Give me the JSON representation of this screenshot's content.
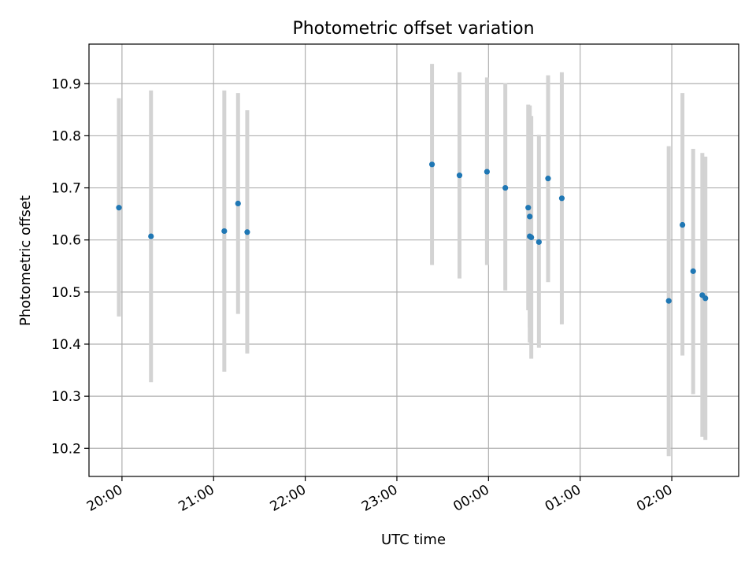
{
  "chart_data": {
    "type": "scatter",
    "title": "Photometric offset variation",
    "xlabel": "UTC time",
    "ylabel": "Photometric offset",
    "x_tick_labels": [
      "20:00",
      "21:00",
      "22:00",
      "23:00",
      "00:00",
      "01:00",
      "02:00"
    ],
    "y_tick_labels": [
      "10.2",
      "10.3",
      "10.4",
      "10.5",
      "10.6",
      "10.7",
      "10.8",
      "10.9"
    ],
    "y_ticks": [
      10.2,
      10.3,
      10.4,
      10.5,
      10.6,
      10.7,
      10.8,
      10.9
    ],
    "x_ticks_hours": [
      20,
      21,
      22,
      23,
      24,
      25,
      26
    ],
    "xlim_hours": [
      19.64,
      26.73
    ],
    "ylim": [
      10.146,
      10.976
    ],
    "grid": true,
    "legend": "none",
    "points": [
      {
        "time": "19:58",
        "y": 10.662,
        "yerr_low": 10.453,
        "yerr_high": 10.872
      },
      {
        "time": "20:19",
        "y": 10.607,
        "yerr_low": 10.327,
        "yerr_high": 10.887
      },
      {
        "time": "21:07",
        "y": 10.617,
        "yerr_low": 10.347,
        "yerr_high": 10.887
      },
      {
        "time": "21:16",
        "y": 10.67,
        "yerr_low": 10.458,
        "yerr_high": 10.882
      },
      {
        "time": "21:22",
        "y": 10.615,
        "yerr_low": 10.382,
        "yerr_high": 10.849
      },
      {
        "time": "23:23",
        "y": 10.745,
        "yerr_low": 10.552,
        "yerr_high": 10.938
      },
      {
        "time": "23:41",
        "y": 10.724,
        "yerr_low": 10.526,
        "yerr_high": 10.922
      },
      {
        "time": "23:59",
        "y": 10.731,
        "yerr_low": 10.552,
        "yerr_high": 10.912
      },
      {
        "time": "00:11",
        "y": 10.7,
        "yerr_low": 10.503,
        "yerr_high": 10.901
      },
      {
        "time": "00:26",
        "y": 10.662,
        "yerr_low": 10.465,
        "yerr_high": 10.86
      },
      {
        "time": "00:27",
        "y": 10.645,
        "yerr_low": 10.432,
        "yerr_high": 10.858
      },
      {
        "time": "00:27",
        "y": 10.607,
        "yerr_low": 10.403,
        "yerr_high": 10.808
      },
      {
        "time": "00:28",
        "y": 10.605,
        "yerr_low": 10.372,
        "yerr_high": 10.838
      },
      {
        "time": "00:33",
        "y": 10.596,
        "yerr_low": 10.393,
        "yerr_high": 10.802
      },
      {
        "time": "00:39",
        "y": 10.718,
        "yerr_low": 10.519,
        "yerr_high": 10.916
      },
      {
        "time": "00:48",
        "y": 10.68,
        "yerr_low": 10.438,
        "yerr_high": 10.922
      },
      {
        "time": "01:58",
        "y": 10.483,
        "yerr_low": 10.185,
        "yerr_high": 10.78
      },
      {
        "time": "02:07",
        "y": 10.629,
        "yerr_low": 10.378,
        "yerr_high": 10.882
      },
      {
        "time": "02:14",
        "y": 10.54,
        "yerr_low": 10.304,
        "yerr_high": 10.775
      },
      {
        "time": "02:20",
        "y": 10.494,
        "yerr_low": 10.222,
        "yerr_high": 10.767
      },
      {
        "time": "02:22",
        "y": 10.488,
        "yerr_low": 10.216,
        "yerr_high": 10.76
      }
    ],
    "colors": {
      "marker": "#1f77b4",
      "errorbar": "#d3d3d3",
      "grid": "#b0b0b0",
      "axes": "#000000"
    }
  }
}
